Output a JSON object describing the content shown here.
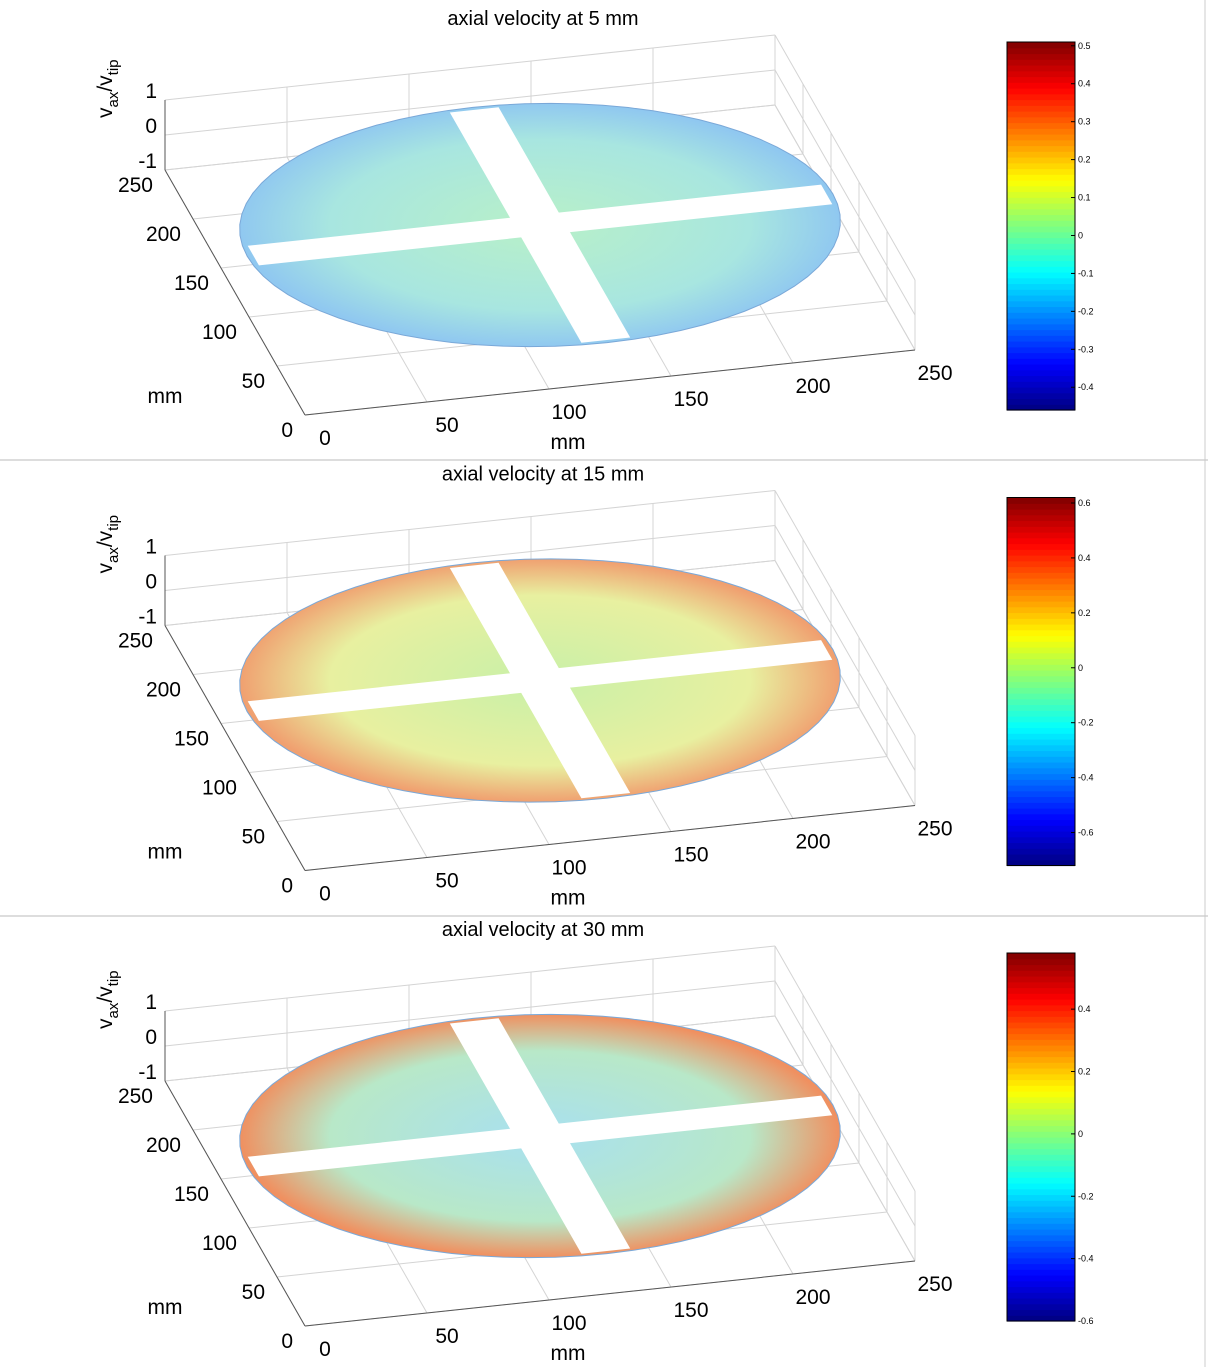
{
  "chart_data": [
    {
      "type": "surface",
      "title": "axial velocity at 5 mm",
      "xlabel": "mm",
      "ylabel": "mm",
      "zlabel": [
        "v",
        "ax",
        "/v",
        "tip"
      ],
      "xlim": [
        0,
        250
      ],
      "xticks": [
        0,
        50,
        100,
        150,
        200,
        250
      ],
      "ylim": [
        0,
        250
      ],
      "yticks": [
        0,
        50,
        100,
        150,
        200,
        250
      ],
      "zlim": [
        -1,
        1
      ],
      "zticks": [
        -1,
        0,
        1
      ],
      "grid": true,
      "colormap": "jet",
      "clim": [
        -0.46,
        0.51
      ],
      "cticks": [
        -0.4,
        -0.3,
        -0.2,
        -0.1,
        0,
        0.1,
        0.2,
        0.3,
        0.4,
        0.5
      ]
    },
    {
      "type": "surface",
      "title": "axial velocity at 15 mm",
      "xlabel": "mm",
      "ylabel": "mm",
      "zlabel": [
        "v",
        "ax",
        "/v",
        "tip"
      ],
      "xlim": [
        0,
        250
      ],
      "xticks": [
        0,
        50,
        100,
        150,
        200,
        250
      ],
      "ylim": [
        0,
        250
      ],
      "yticks": [
        0,
        50,
        100,
        150,
        200,
        250
      ],
      "zlim": [
        -1,
        1
      ],
      "zticks": [
        -1,
        0,
        1
      ],
      "grid": true,
      "colormap": "jet",
      "clim": [
        -0.72,
        0.62
      ],
      "cticks": [
        -0.6,
        -0.4,
        -0.2,
        0,
        0.2,
        0.4,
        0.6
      ]
    },
    {
      "type": "surface",
      "title": "axial velocity at 30 mm",
      "xlabel": "mm",
      "ylabel": "mm",
      "zlabel": [
        "v",
        "ax",
        "/v",
        "tip"
      ],
      "xlim": [
        0,
        250
      ],
      "xticks": [
        0,
        50,
        100,
        150,
        200,
        250
      ],
      "ylim": [
        0,
        250
      ],
      "yticks": [
        0,
        50,
        100,
        150,
        200,
        250
      ],
      "zlim": [
        -1,
        1
      ],
      "zticks": [
        -1,
        0,
        1
      ],
      "grid": true,
      "colormap": "jet",
      "clim": [
        -0.6,
        0.58
      ],
      "cticks": [
        -0.6,
        -0.4,
        -0.2,
        0,
        0.2,
        0.4
      ]
    }
  ]
}
